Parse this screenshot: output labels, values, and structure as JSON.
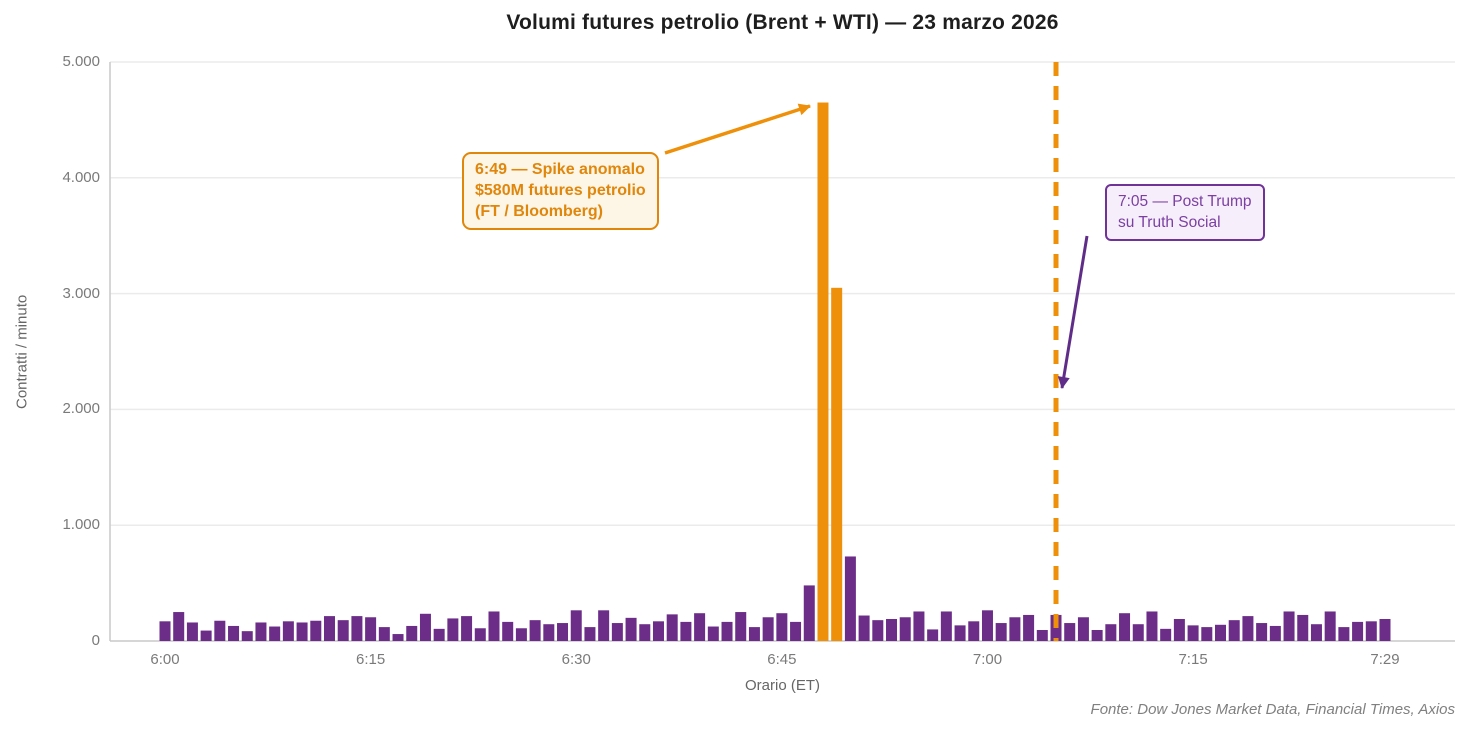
{
  "page": {
    "background": "#ffffff"
  },
  "chart_data": {
    "type": "bar",
    "title": "Volumi futures petrolio (Brent + WTI) — 23 marzo 2026",
    "xlabel": "Orario (ET)",
    "ylabel": "Contratti / minuto",
    "source": "Fonte: Dow Jones Market Data, Financial Times, Axios",
    "ylim": [
      0,
      5000
    ],
    "yticks": [
      {
        "value": 0,
        "label": "0"
      },
      {
        "value": 1000,
        "label": "1.000"
      },
      {
        "value": 2000,
        "label": "2.000"
      },
      {
        "value": 3000,
        "label": "3.000"
      },
      {
        "value": 4000,
        "label": "4.000"
      },
      {
        "value": 5000,
        "label": "5.000"
      }
    ],
    "xticks": [
      {
        "minute": 0,
        "label": "6:00"
      },
      {
        "minute": 15,
        "label": "6:15"
      },
      {
        "minute": 30,
        "label": "6:30"
      },
      {
        "minute": 45,
        "label": "6:45"
      },
      {
        "minute": 60,
        "label": "7:00"
      },
      {
        "minute": 75,
        "label": "7:15"
      },
      {
        "minute": 89,
        "label": "7:29"
      }
    ],
    "minutes_total": 89,
    "start_time": "6:00",
    "end_time": "7:29",
    "values": [
      170,
      250,
      160,
      90,
      175,
      130,
      85,
      160,
      125,
      170,
      160,
      175,
      215,
      180,
      215,
      205,
      120,
      60,
      130,
      235,
      105,
      195,
      215,
      110,
      255,
      165,
      110,
      180,
      145,
      155,
      265,
      120,
      265,
      155,
      200,
      145,
      170,
      230,
      165,
      240,
      125,
      165,
      250,
      120,
      205,
      240,
      165,
      480,
      4650,
      3050,
      730,
      220,
      180,
      190,
      205,
      255,
      100,
      255,
      135,
      170,
      265,
      155,
      205,
      225,
      95,
      225,
      155,
      205,
      95,
      145,
      240,
      145,
      255,
      105,
      190,
      135,
      120,
      140,
      180,
      215,
      155,
      130,
      255,
      225,
      145,
      255,
      120,
      165,
      170,
      190
    ],
    "spike_indices": [
      48,
      49
    ],
    "bar_color": "#6b2d87",
    "spike_color": "#ee9009",
    "gridline_color": "#ebebeb",
    "axis_line_color": "#c9c9c9",
    "legend": "none",
    "grid": "horizontal",
    "event_line": {
      "minute": 65,
      "time": "7:05",
      "color": "#ee9009",
      "style": "dashed"
    }
  },
  "annotations": {
    "spike": {
      "lines": {
        "0": "6:49 — Spike anomalo",
        "1": "$580M futures petrolio",
        "2": "(FT / Bloomberg)"
      },
      "text_color": "#e0860b",
      "border_color": "#e0860b",
      "bg_color": "#fdf6e7",
      "arrow_color": "#ee9009"
    },
    "trump": {
      "lines": {
        "0": "7:05 — Post Trump",
        "1": "su Truth Social"
      },
      "text_color": "#7b3fa2",
      "border_color": "#6f3397",
      "bg_color": "#f6eefa",
      "arrow_color": "#5f2d87"
    }
  }
}
